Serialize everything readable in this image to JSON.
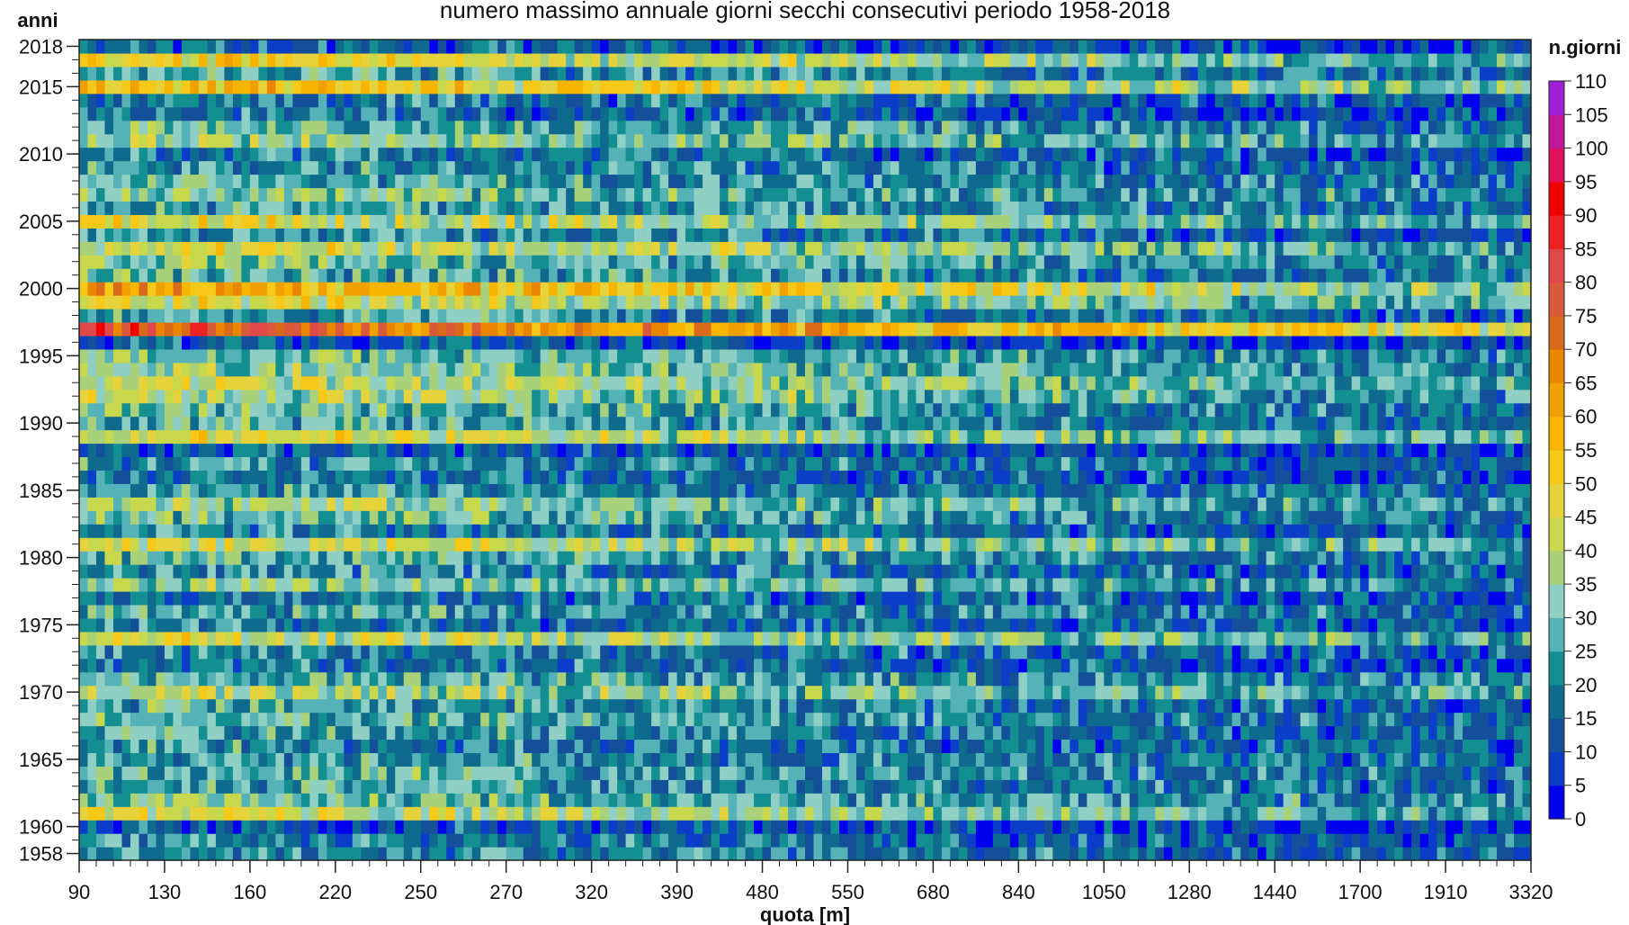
{
  "chart_data": {
    "type": "heatmap",
    "title": "numero massimo annuale giorni secchi consecutivi periodo 1958-2018",
    "xlabel": "quota [m]",
    "ylabel": "anni",
    "colorbar_title": "n.giorni",
    "x_tick_labels": [
      "90",
      "130",
      "160",
      "220",
      "250",
      "270",
      "320",
      "390",
      "480",
      "550",
      "680",
      "840",
      "1050",
      "1280",
      "1440",
      "1700",
      "1910",
      "3320"
    ],
    "y_tick_labels": [
      "2018",
      "2015",
      "2010",
      "2005",
      "2000",
      "1995",
      "1990",
      "1985",
      "1980",
      "1975",
      "1970",
      "1965",
      "1960",
      "1958"
    ],
    "y_tick_values": [
      2018,
      2015,
      2010,
      2005,
      2000,
      1995,
      1990,
      1985,
      1980,
      1975,
      1970,
      1965,
      1960,
      1958
    ],
    "year_range": [
      1958,
      2018
    ],
    "n_columns": 170,
    "color_range": [
      0,
      110
    ],
    "colorbar_ticks": [
      0,
      5,
      10,
      15,
      20,
      25,
      30,
      35,
      40,
      45,
      50,
      55,
      60,
      65,
      70,
      75,
      80,
      85,
      90,
      95,
      100,
      105,
      110
    ],
    "colorbar_colors": [
      "#0000ee",
      "#0a3ec8",
      "#14509a",
      "#0f6b8e",
      "#138f92",
      "#55b3b8",
      "#8fcfc4",
      "#a8d17a",
      "#c8d84c",
      "#e6d23a",
      "#f6c818",
      "#f7b500",
      "#f0a000",
      "#ea8500",
      "#d86a1a",
      "#d95a3a",
      "#e0484a",
      "#ee2222",
      "#f00000",
      "#e0105a",
      "#c0189a",
      "#a020d8"
    ],
    "year_mean_dry_days": {
      "1958": 24,
      "1959": 22,
      "1960": 14,
      "1961": 45,
      "1962": 34,
      "1963": 28,
      "1964": 30,
      "1965": 27,
      "1966": 22,
      "1967": 26,
      "1968": 30,
      "1969": 28,
      "1970": 42,
      "1971": 30,
      "1972": 20,
      "1973": 24,
      "1974": 46,
      "1975": 22,
      "1976": 28,
      "1977": 20,
      "1978": 36,
      "1979": 24,
      "1980": 30,
      "1981": 46,
      "1982": 22,
      "1983": 32,
      "1984": 38,
      "1985": 26,
      "1986": 20,
      "1987": 24,
      "1988": 16,
      "1989": 48,
      "1990": 28,
      "1991": 32,
      "1992": 40,
      "1993": 44,
      "1994": 36,
      "1995": 34,
      "1996": 14,
      "1997": 78,
      "1998": 26,
      "1999": 46,
      "2000": 62,
      "2001": 30,
      "2002": 34,
      "2003": 46,
      "2004": 24,
      "2005": 46,
      "2006": 28,
      "2007": 34,
      "2008": 30,
      "2009": 26,
      "2010": 22,
      "2011": 38,
      "2012": 30,
      "2013": 18,
      "2014": 20,
      "2015": 56,
      "2016": 28,
      "2017": 50,
      "2018": 18
    }
  }
}
